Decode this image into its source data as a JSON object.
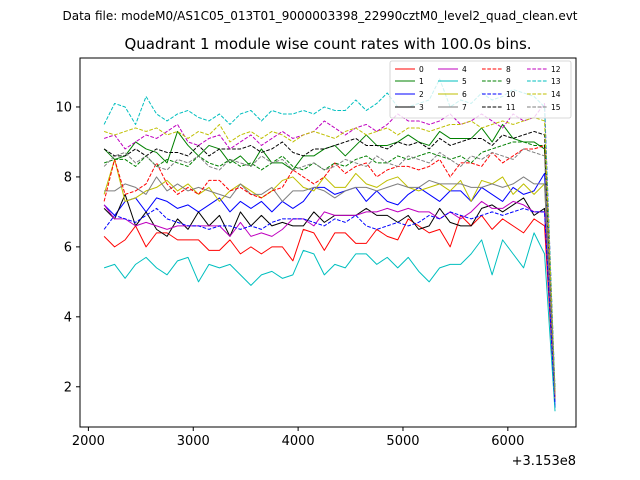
{
  "suptitle": "Data file: modeM0/AS1C05_013T01_9000003398_22990cztM0_level2_quad_clean.evt",
  "chart_data": {
    "type": "line",
    "title": "Quadrant 1 module wise count rates with 100.0s bins.",
    "xlabel": "",
    "ylabel": "",
    "x_offset_label": "+3.153e8",
    "xlim": [
      1920,
      6650
    ],
    "ylim": [
      0.85,
      11.4
    ],
    "x_ticks": [
      2000,
      3000,
      4000,
      5000,
      6000
    ],
    "y_ticks": [
      2,
      4,
      6,
      8,
      10
    ],
    "legend_position": "top-right",
    "x": [
      2150,
      2250,
      2350,
      2450,
      2550,
      2650,
      2750,
      2850,
      2950,
      3050,
      3150,
      3250,
      3350,
      3450,
      3550,
      3650,
      3750,
      3850,
      3950,
      4050,
      4150,
      4250,
      4350,
      4450,
      4550,
      4650,
      4750,
      4850,
      4950,
      5050,
      5150,
      5250,
      5350,
      5450,
      5550,
      5650,
      5750,
      5850,
      5950,
      6050,
      6150,
      6250,
      6350,
      6450
    ],
    "series": [
      {
        "name": "0",
        "color": "#ff0000",
        "dash": "solid",
        "values": [
          6.3,
          6.0,
          6.2,
          6.6,
          6.0,
          6.4,
          6.4,
          6.2,
          6.2,
          6.2,
          5.9,
          5.9,
          6.2,
          5.8,
          6.0,
          5.8,
          6.0,
          6.0,
          5.6,
          6.5,
          6.4,
          5.9,
          6.4,
          6.4,
          6.1,
          6.1,
          6.5,
          6.3,
          6.2,
          6.8,
          6.6,
          6.4,
          6.5,
          6.0,
          6.9,
          6.6,
          6.9,
          6.5,
          6.8,
          6.6,
          6.4,
          6.8,
          6.6,
          1.6
        ]
      },
      {
        "name": "1",
        "color": "#008000",
        "dash": "solid",
        "values": [
          8.8,
          8.5,
          8.6,
          9.0,
          8.8,
          8.7,
          8.4,
          9.3,
          8.9,
          8.6,
          8.9,
          8.8,
          8.4,
          8.6,
          8.3,
          8.8,
          8.4,
          8.4,
          8.2,
          8.6,
          8.6,
          8.8,
          8.9,
          8.6,
          8.9,
          9.2,
          8.9,
          8.9,
          9.0,
          9.2,
          9.0,
          8.9,
          9.3,
          9.1,
          9.1,
          9.1,
          9.4,
          9.0,
          9.5,
          9.1,
          9.0,
          9.0,
          8.8,
          1.7
        ]
      },
      {
        "name": "2",
        "color": "#0000ff",
        "dash": "solid",
        "values": [
          7.2,
          6.9,
          7.3,
          7.4,
          7.0,
          7.4,
          7.3,
          7.1,
          7.2,
          7.0,
          7.2,
          7.4,
          7.0,
          7.3,
          7.1,
          7.3,
          7.0,
          7.3,
          7.1,
          7.3,
          7.7,
          7.7,
          7.5,
          7.6,
          7.7,
          7.3,
          7.6,
          7.3,
          7.2,
          7.5,
          7.7,
          7.5,
          7.3,
          7.6,
          7.6,
          7.3,
          7.7,
          7.5,
          7.3,
          7.7,
          7.5,
          7.6,
          8.1,
          1.4
        ]
      },
      {
        "name": "3",
        "color": "#000000",
        "dash": "solid",
        "values": [
          7.1,
          6.8,
          7.5,
          6.6,
          7.0,
          6.5,
          6.3,
          6.8,
          6.5,
          7.0,
          6.6,
          6.9,
          6.3,
          7.0,
          6.6,
          6.9,
          6.6,
          6.7,
          6.6,
          6.6,
          7.0,
          6.7,
          6.9,
          6.9,
          6.9,
          7.1,
          6.9,
          6.9,
          6.7,
          6.9,
          6.5,
          6.6,
          7.1,
          6.7,
          6.6,
          6.6,
          7.1,
          7.2,
          7.0,
          7.2,
          7.4,
          6.9,
          7.1,
          1.7
        ]
      },
      {
        "name": "4",
        "color": "#bf00bf",
        "dash": "solid",
        "values": [
          7.2,
          6.8,
          6.8,
          6.6,
          6.7,
          6.6,
          6.5,
          6.6,
          6.6,
          6.6,
          6.6,
          6.6,
          6.3,
          6.7,
          6.3,
          6.4,
          6.3,
          6.5,
          6.8,
          6.8,
          6.6,
          7.0,
          6.9,
          6.9,
          6.9,
          7.0,
          7.0,
          7.1,
          7.0,
          7.1,
          7.0,
          7.0,
          6.8,
          7.0,
          6.8,
          7.0,
          7.3,
          7.1,
          7.1,
          7.3,
          7.2,
          7.0,
          7.0,
          1.7
        ]
      },
      {
        "name": "5",
        "color": "#00bfbf",
        "dash": "solid",
        "values": [
          5.4,
          5.5,
          5.1,
          5.5,
          5.7,
          5.4,
          5.2,
          5.6,
          5.7,
          5.0,
          5.5,
          5.4,
          5.5,
          5.2,
          4.9,
          5.2,
          5.3,
          5.1,
          5.2,
          5.9,
          5.8,
          5.2,
          5.5,
          5.4,
          5.8,
          5.8,
          5.5,
          5.7,
          5.4,
          5.7,
          5.3,
          5.0,
          5.4,
          5.5,
          5.5,
          5.8,
          6.2,
          5.2,
          6.2,
          5.8,
          5.4,
          6.4,
          5.8,
          1.3
        ]
      },
      {
        "name": "6",
        "color": "#bfbf00",
        "dash": "solid",
        "values": [
          7.5,
          8.5,
          7.3,
          7.4,
          7.6,
          7.7,
          7.9,
          7.6,
          7.8,
          7.5,
          7.7,
          7.3,
          7.6,
          7.8,
          7.6,
          7.4,
          7.6,
          7.9,
          8.0,
          7.7,
          7.6,
          8.0,
          7.7,
          7.7,
          8.1,
          7.8,
          7.7,
          7.9,
          8.0,
          7.7,
          7.6,
          7.7,
          7.8,
          7.6,
          7.9,
          7.3,
          7.9,
          7.8,
          8.0,
          7.5,
          7.8,
          7.5,
          7.8,
          1.6
        ]
      },
      {
        "name": "7",
        "color": "#7f7f7f",
        "dash": "solid",
        "values": [
          7.6,
          7.6,
          7.8,
          7.7,
          7.5,
          8.0,
          7.6,
          7.8,
          7.6,
          7.7,
          7.6,
          7.5,
          7.4,
          7.8,
          7.5,
          7.5,
          7.7,
          7.3,
          7.6,
          7.6,
          7.7,
          7.6,
          7.4,
          7.6,
          7.7,
          7.7,
          7.6,
          7.7,
          7.8,
          7.7,
          7.7,
          7.9,
          7.8,
          7.8,
          7.8,
          7.7,
          7.7,
          7.8,
          7.7,
          7.8,
          8.0,
          7.8,
          7.8,
          1.6
        ]
      },
      {
        "name": "8",
        "color": "#ff0000",
        "dash": "dashed",
        "values": [
          7.3,
          8.5,
          7.5,
          7.6,
          7.8,
          8.4,
          7.8,
          7.5,
          7.7,
          7.5,
          7.9,
          7.9,
          7.6,
          7.7,
          7.5,
          7.4,
          7.6,
          7.7,
          8.2,
          8.0,
          7.8,
          8.0,
          8.4,
          8.1,
          8.3,
          8.4,
          8.0,
          8.2,
          8.3,
          8.3,
          8.2,
          8.3,
          8.5,
          8.0,
          8.4,
          8.4,
          8.3,
          8.7,
          8.4,
          8.6,
          8.8,
          8.8,
          8.9,
          1.7
        ]
      },
      {
        "name": "9",
        "color": "#008000",
        "dash": "dashed",
        "values": [
          8.4,
          8.5,
          8.5,
          8.3,
          8.6,
          8.3,
          8.5,
          8.4,
          8.3,
          8.6,
          8.4,
          8.3,
          8.5,
          8.3,
          8.4,
          8.2,
          8.4,
          8.6,
          8.3,
          8.2,
          8.4,
          8.2,
          8.4,
          8.3,
          8.5,
          8.6,
          8.4,
          8.4,
          8.6,
          8.5,
          8.6,
          8.7,
          8.6,
          8.5,
          8.6,
          8.4,
          8.7,
          8.8,
          8.9,
          9.0,
          9.0,
          8.9,
          8.9,
          1.9
        ]
      },
      {
        "name": "10",
        "color": "#0000ff",
        "dash": "dashed",
        "values": [
          6.5,
          6.9,
          6.8,
          6.7,
          6.9,
          7.1,
          6.8,
          6.7,
          6.6,
          6.6,
          6.5,
          6.6,
          6.6,
          6.5,
          6.6,
          6.5,
          6.7,
          6.8,
          6.8,
          6.8,
          6.7,
          6.6,
          6.8,
          6.7,
          6.9,
          6.6,
          6.5,
          6.6,
          6.7,
          6.6,
          6.7,
          6.9,
          6.8,
          7.0,
          6.9,
          6.8,
          6.9,
          7.0,
          6.9,
          7.0,
          7.1,
          7.0,
          7.0,
          1.5
        ]
      },
      {
        "name": "11",
        "color": "#000000",
        "dash": "dashed",
        "values": [
          8.8,
          8.6,
          8.6,
          8.8,
          8.6,
          8.8,
          8.7,
          8.7,
          8.6,
          8.9,
          8.6,
          8.8,
          8.8,
          8.8,
          8.9,
          8.7,
          8.8,
          9.0,
          8.7,
          8.6,
          8.8,
          8.8,
          8.9,
          9.0,
          9.1,
          8.9,
          8.9,
          8.8,
          9.0,
          8.9,
          9.0,
          8.8,
          9.1,
          8.9,
          9.0,
          9.1,
          9.1,
          8.9,
          9.2,
          9.1,
          9.2,
          9.3,
          9.2,
          1.8
        ]
      },
      {
        "name": "12",
        "color": "#bf00bf",
        "dash": "dashed",
        "values": [
          9.1,
          9.2,
          8.8,
          9.0,
          9.2,
          9.1,
          9.3,
          9.5,
          9.0,
          8.9,
          9.1,
          9.2,
          8.8,
          9.0,
          9.2,
          8.9,
          9.1,
          9.3,
          9.1,
          9.2,
          9.3,
          9.6,
          9.4,
          9.2,
          9.4,
          9.5,
          9.3,
          9.5,
          9.8,
          9.6,
          9.6,
          9.5,
          9.6,
          9.8,
          9.5,
          9.6,
          9.8,
          9.6,
          9.4,
          9.8,
          9.6,
          9.7,
          10.1,
          1.8
        ]
      },
      {
        "name": "13",
        "color": "#00bfbf",
        "dash": "dashed",
        "values": [
          9.5,
          10.1,
          10.0,
          9.5,
          10.3,
          9.8,
          9.6,
          9.8,
          9.9,
          9.7,
          9.6,
          9.8,
          9.5,
          9.8,
          9.9,
          9.6,
          9.9,
          9.8,
          9.8,
          9.9,
          9.8,
          10.0,
          9.9,
          9.9,
          10.2,
          9.9,
          10.1,
          10.4,
          10.0,
          10.0,
          10.1,
          10.2,
          10.8,
          10.0,
          10.2,
          10.1,
          10.4,
          10.2,
          10.3,
          10.5,
          10.4,
          10.3,
          10.0,
          1.9
        ]
      },
      {
        "name": "14",
        "color": "#bfbf00",
        "dash": "dashed",
        "values": [
          9.3,
          9.2,
          9.3,
          9.4,
          9.3,
          9.4,
          9.2,
          9.3,
          9.1,
          9.3,
          9.2,
          9.5,
          9.0,
          9.2,
          9.3,
          9.1,
          9.3,
          9.2,
          9.0,
          9.2,
          9.3,
          9.2,
          9.1,
          9.3,
          9.4,
          9.2,
          9.3,
          9.4,
          9.2,
          9.4,
          9.4,
          9.3,
          9.4,
          9.5,
          9.5,
          9.6,
          9.4,
          9.5,
          9.6,
          9.5,
          9.6,
          9.7,
          9.6,
          1.8
        ]
      },
      {
        "name": "15",
        "color": "#7f7f7f",
        "dash": "dashed",
        "values": [
          8.3,
          8.6,
          8.7,
          8.4,
          8.6,
          8.3,
          8.2,
          8.5,
          8.4,
          8.6,
          8.3,
          8.2,
          8.5,
          8.4,
          8.3,
          8.6,
          8.4,
          8.5,
          8.2,
          8.3,
          8.4,
          8.2,
          8.3,
          8.5,
          8.4,
          8.3,
          8.6,
          8.4,
          8.3,
          8.6,
          8.5,
          8.4,
          8.7,
          8.5,
          8.3,
          8.6,
          8.5,
          8.7,
          8.6,
          8.5,
          8.8,
          8.7,
          8.6,
          1.7
        ]
      }
    ]
  }
}
